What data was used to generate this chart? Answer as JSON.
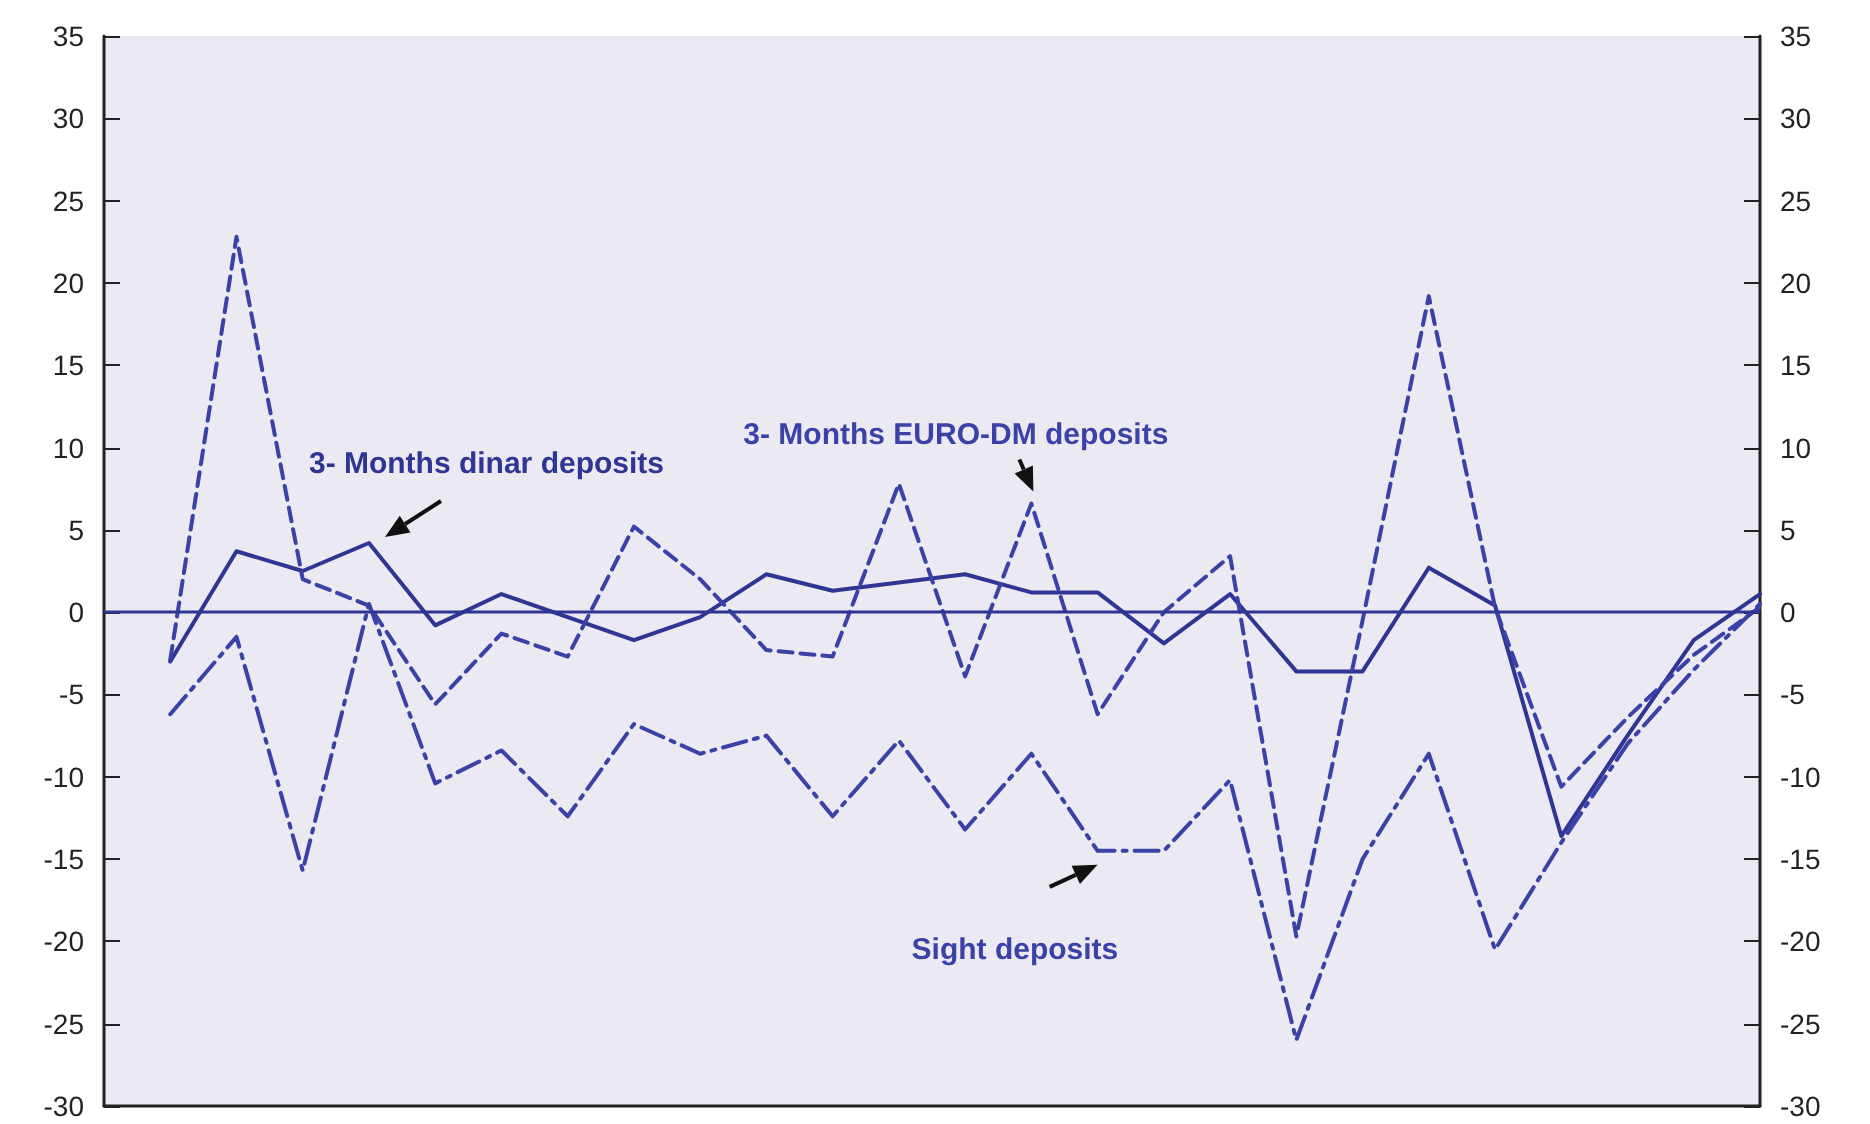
{
  "chart_data": {
    "type": "line",
    "categories": [
      null,
      null,
      null,
      null,
      null,
      null,
      null,
      null,
      null,
      null,
      null,
      null,
      null,
      null,
      null,
      null,
      null,
      null,
      null,
      null,
      null,
      null,
      null,
      null,
      null
    ],
    "series": [
      {
        "name": "3- Months dinar deposits",
        "color": "#2e3592",
        "line_style": "solid",
        "values": [
          -3,
          3.7,
          2.5,
          4.2,
          -0.8,
          1.1,
          -0.3,
          -1.7,
          -0.3,
          2.3,
          1.3,
          1.8,
          2.3,
          1.2,
          1.2,
          -1.9,
          1.1,
          -3.6,
          -3.6,
          2.7,
          0.4,
          -13.6,
          -7.5,
          -1.7,
          1.1
        ]
      },
      {
        "name": "3- Months EURO-DM deposits",
        "color": "#3a42a8",
        "line_style": "dashed",
        "values": [
          -2.9,
          22.8,
          2,
          0.4,
          -5.6,
          -1.3,
          -2.7,
          5.2,
          2,
          -2.3,
          -2.7,
          7.8,
          -3.9,
          6.6,
          -6.2,
          0,
          3.4,
          -19.7,
          -0.5,
          19.2,
          0.3,
          -10.6,
          -6.4,
          -2.6,
          0.3
        ]
      },
      {
        "name": "Sight deposits",
        "color": "#3a42a8",
        "line_style": "dashdot",
        "values": [
          -6.2,
          -1.5,
          -15.7,
          0.5,
          -10.4,
          -8.4,
          -12.4,
          -6.8,
          -8.6,
          -7.5,
          -12.4,
          -7.8,
          -13.2,
          -8.6,
          -14.5,
          -14.5,
          -10.2,
          -26,
          -15,
          -8.6,
          -20.5,
          -14,
          -8,
          -3.5,
          0.5
        ]
      }
    ],
    "ylim": [
      -30,
      35
    ],
    "yticks": [
      -30,
      -25,
      -20,
      -15,
      -10,
      -5,
      0,
      5,
      10,
      15,
      20,
      25,
      30,
      35
    ],
    "y2lim": [
      -30,
      35
    ],
    "y2ticks": [
      -30,
      -25,
      -20,
      -15,
      -10,
      -5,
      0,
      5,
      10,
      15,
      20,
      25,
      30,
      35
    ],
    "ref_lines": [
      {
        "axis": "y",
        "value": 0,
        "color": "#2e3592"
      }
    ],
    "grid": false,
    "legend": false,
    "marker": "none"
  }
}
